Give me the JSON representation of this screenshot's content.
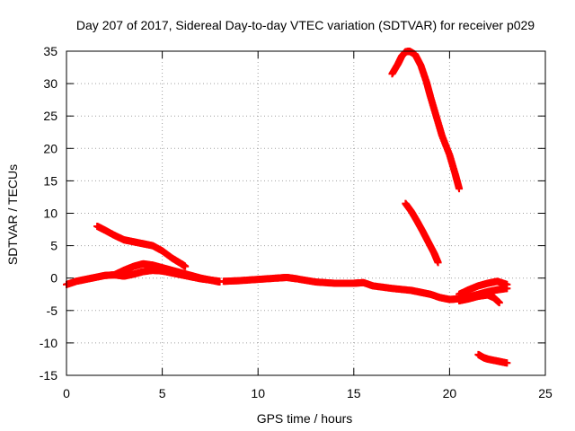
{
  "chart_data": {
    "type": "scatter",
    "title": "Day 207 of 2017, Sidereal Day-to-day VTEC variation (SDTVAR) for receiver p029",
    "xlabel": "GPS time / hours",
    "ylabel": "SDTVAR / TECUs",
    "xlim": [
      0,
      25
    ],
    "ylim": [
      -15,
      35
    ],
    "xticks": [
      0,
      5,
      10,
      15,
      20,
      25
    ],
    "yticks": [
      -15,
      -10,
      -5,
      0,
      5,
      10,
      15,
      20,
      25,
      30,
      35
    ],
    "grid": true,
    "legend": "none",
    "series_color": "#ff0000",
    "series": [
      {
        "name": "s1",
        "x": [
          0.0,
          0.5,
          1.0,
          1.5,
          2.0,
          2.5,
          3.0,
          3.5,
          4.0,
          4.5,
          5.0,
          5.5,
          6.0,
          6.5,
          7.0,
          7.5,
          8.0
        ],
        "y": [
          -1.0,
          -0.5,
          -0.2,
          0.1,
          0.4,
          0.5,
          0.3,
          0.6,
          1.0,
          1.2,
          1.1,
          0.8,
          0.5,
          0.2,
          -0.1,
          -0.3,
          -0.5
        ]
      },
      {
        "name": "s2",
        "x": [
          2.5,
          3.0,
          3.5,
          4.0,
          4.5,
          5.0,
          5.5,
          6.0,
          6.5,
          7.0,
          7.5,
          8.0
        ],
        "y": [
          0.5,
          1.2,
          1.8,
          2.2,
          2.0,
          1.6,
          1.2,
          0.8,
          0.4,
          0.0,
          -0.3,
          -0.6
        ]
      },
      {
        "name": "s3",
        "x": [
          1.6,
          2.0,
          2.5,
          3.0,
          3.5,
          4.0,
          4.5,
          5.0,
          5.5,
          6.0,
          6.2
        ],
        "y": [
          8.0,
          7.4,
          6.6,
          5.9,
          5.6,
          5.3,
          5.0,
          4.2,
          3.1,
          2.2,
          1.8
        ]
      },
      {
        "name": "s4",
        "x": [
          8.2,
          9.0,
          10.0,
          11.0,
          11.5,
          12.0,
          13.0,
          14.0,
          15.0,
          15.5,
          16.0,
          17.0,
          18.0,
          18.5,
          19.0,
          19.5,
          20.0,
          20.5,
          21.0,
          21.5,
          22.0,
          22.5,
          23.0
        ],
        "y": [
          -0.5,
          -0.4,
          -0.2,
          0.0,
          0.1,
          -0.1,
          -0.6,
          -0.8,
          -0.8,
          -0.7,
          -1.2,
          -1.6,
          -1.9,
          -2.2,
          -2.5,
          -3.0,
          -3.3,
          -3.2,
          -2.9,
          -2.5,
          -2.1,
          -1.8,
          -1.6
        ]
      },
      {
        "name": "s5",
        "x": [
          20.5,
          21.0,
          21.5,
          22.0,
          22.5,
          23.0
        ],
        "y": [
          -2.5,
          -1.8,
          -1.2,
          -0.8,
          -0.5,
          -1.0
        ]
      },
      {
        "name": "s6",
        "x": [
          20.5,
          21.0,
          21.5,
          22.0,
          22.3,
          22.6
        ],
        "y": [
          -3.5,
          -3.2,
          -2.8,
          -2.6,
          -3.0,
          -3.8
        ]
      },
      {
        "name": "s7",
        "x": [
          17.0,
          17.3,
          17.5,
          17.7,
          17.9,
          18.2,
          18.5,
          18.8,
          19.0,
          19.3,
          19.6,
          20.0,
          20.3,
          20.5
        ],
        "y": [
          31.5,
          33.0,
          34.2,
          34.9,
          35.0,
          34.5,
          32.8,
          30.2,
          28.0,
          25.0,
          22.0,
          19.0,
          16.0,
          13.8
        ]
      },
      {
        "name": "s8",
        "x": [
          17.7,
          18.0,
          18.3,
          18.6,
          18.9,
          19.2,
          19.4
        ],
        "y": [
          11.5,
          10.3,
          8.8,
          7.2,
          5.5,
          3.8,
          2.4
        ]
      },
      {
        "name": "s9",
        "x": [
          21.5,
          21.8,
          22.0,
          22.5,
          23.0
        ],
        "y": [
          -11.8,
          -12.3,
          -12.5,
          -12.8,
          -13.1
        ]
      }
    ]
  }
}
